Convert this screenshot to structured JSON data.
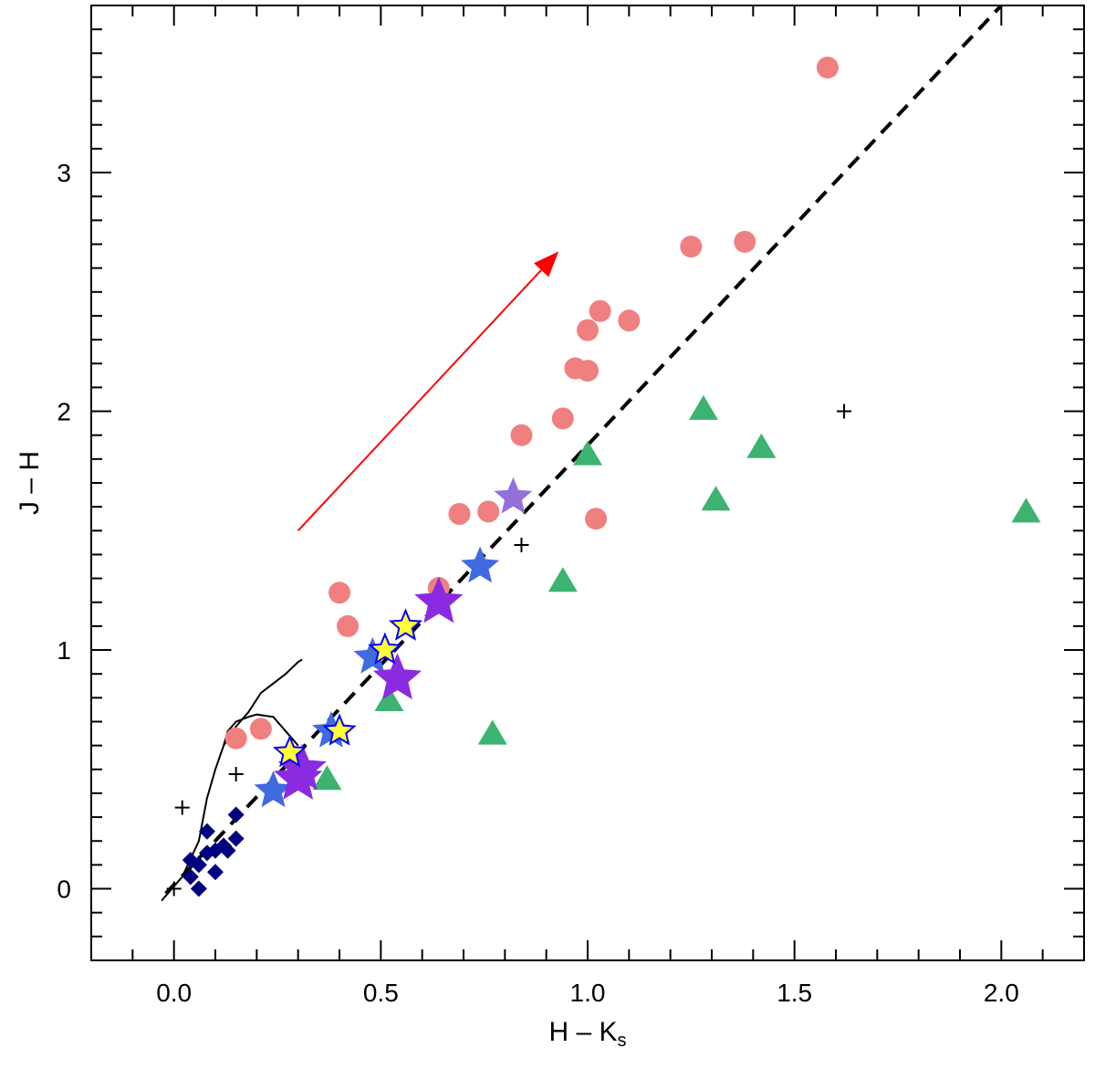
{
  "chart_data": {
    "type": "scatter",
    "title": "",
    "xlabel_main": "H – K",
    "xlabel_sub": "s",
    "ylabel": "J – H",
    "xlim": [
      -0.2,
      2.2
    ],
    "ylim": [
      -0.3,
      3.7
    ],
    "xticks": [
      {
        "value": 0.0,
        "label": "0.0"
      },
      {
        "value": 0.5,
        "label": "0.5"
      },
      {
        "value": 1.0,
        "label": "1.0"
      },
      {
        "value": 1.5,
        "label": "1.5"
      },
      {
        "value": 2.0,
        "label": "2.0"
      }
    ],
    "yticks": [
      {
        "value": 0,
        "label": "0"
      },
      {
        "value": 1,
        "label": "1"
      },
      {
        "value": 2,
        "label": "2"
      },
      {
        "value": 3,
        "label": "3"
      }
    ],
    "x_minor_step": 0.1,
    "y_minor_step": 0.1,
    "grid": false,
    "series": [
      {
        "marker": "circle",
        "color": "#f08080",
        "points": [
          [
            1.58,
            3.44
          ],
          [
            1.25,
            2.69
          ],
          [
            1.38,
            2.71
          ],
          [
            1.03,
            2.42
          ],
          [
            1.1,
            2.38
          ],
          [
            1.0,
            2.34
          ],
          [
            0.97,
            2.18
          ],
          [
            1.0,
            2.17
          ],
          [
            0.94,
            1.97
          ],
          [
            0.84,
            1.9
          ],
          [
            0.69,
            1.57
          ],
          [
            0.76,
            1.58
          ],
          [
            1.02,
            1.55
          ],
          [
            0.64,
            1.26
          ],
          [
            0.4,
            1.24
          ],
          [
            0.42,
            1.1
          ],
          [
            0.15,
            0.63
          ],
          [
            0.21,
            0.67
          ]
        ]
      },
      {
        "marker": "triangle",
        "color": "#3cb371",
        "points": [
          [
            1.28,
            2.01
          ],
          [
            1.42,
            1.85
          ],
          [
            1.0,
            1.82
          ],
          [
            1.31,
            1.63
          ],
          [
            2.06,
            1.58
          ],
          [
            0.94,
            1.29
          ],
          [
            0.52,
            0.79
          ],
          [
            0.77,
            0.65
          ],
          [
            0.37,
            0.46
          ]
        ]
      },
      {
        "marker": "diamond",
        "color": "#000080",
        "points": [
          [
            0.15,
            0.31
          ],
          [
            0.08,
            0.24
          ],
          [
            0.15,
            0.21
          ],
          [
            0.12,
            0.18
          ],
          [
            0.1,
            0.16
          ],
          [
            0.08,
            0.15
          ],
          [
            0.13,
            0.16
          ],
          [
            0.04,
            0.12
          ],
          [
            0.06,
            0.1
          ],
          [
            0.1,
            0.07
          ],
          [
            0.04,
            0.05
          ],
          [
            0.06,
            0.0
          ]
        ]
      },
      {
        "marker": "star",
        "color": "#4169e1",
        "size": "medium",
        "points": [
          [
            0.74,
            1.35
          ],
          [
            0.48,
            0.97
          ],
          [
            0.38,
            0.66
          ],
          [
            0.24,
            0.41
          ]
        ]
      },
      {
        "marker": "star",
        "color": "#8a2be2",
        "size": "large",
        "points": [
          [
            0.64,
            1.2
          ],
          [
            0.54,
            0.88
          ],
          [
            0.31,
            0.5
          ],
          [
            0.3,
            0.46
          ]
        ]
      },
      {
        "marker": "star",
        "color": "#9370db",
        "size": "medium",
        "points": [
          [
            0.82,
            1.64
          ]
        ]
      },
      {
        "marker": "star-outline",
        "color": "#ffff33",
        "stroke": "#0000ff",
        "points": [
          [
            0.56,
            1.1
          ],
          [
            0.51,
            1.0
          ],
          [
            0.4,
            0.66
          ],
          [
            0.28,
            0.57
          ]
        ]
      },
      {
        "marker": "plus",
        "color": "#000000",
        "points": [
          [
            0.0,
            0.0
          ],
          [
            0.02,
            0.34
          ],
          [
            0.15,
            0.48
          ],
          [
            0.84,
            1.44
          ],
          [
            1.62,
            2.0
          ]
        ]
      }
    ],
    "dwarf_track": [
      [
        -0.03,
        -0.05
      ],
      [
        0.02,
        0.05
      ],
      [
        0.06,
        0.2
      ],
      [
        0.08,
        0.38
      ],
      [
        0.1,
        0.5
      ],
      [
        0.12,
        0.6
      ],
      [
        0.13,
        0.66
      ],
      [
        0.15,
        0.7
      ],
      [
        0.18,
        0.72
      ],
      [
        0.2,
        0.73
      ],
      [
        0.24,
        0.72
      ],
      [
        0.26,
        0.68
      ],
      [
        0.28,
        0.64
      ],
      [
        0.3,
        0.6
      ]
    ],
    "giant_track": [
      [
        0.12,
        0.6
      ],
      [
        0.15,
        0.68
      ],
      [
        0.18,
        0.74
      ],
      [
        0.21,
        0.82
      ],
      [
        0.24,
        0.86
      ],
      [
        0.27,
        0.9
      ],
      [
        0.3,
        0.95
      ],
      [
        0.31,
        0.96
      ]
    ],
    "ctts_locus": {
      "from": [
        -0.02,
        -0.02
      ],
      "to": [
        2.0,
        3.7
      ],
      "style": "dashed"
    },
    "reddening_vector": {
      "from": [
        0.3,
        1.5
      ],
      "to": [
        0.93,
        2.67
      ],
      "color": "#ff0000"
    }
  }
}
